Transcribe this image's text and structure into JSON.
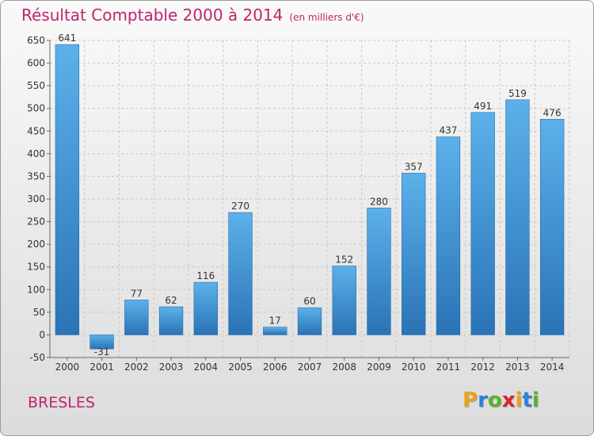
{
  "header": {
    "title": "Résultat Comptable 2000 à 2014",
    "subtitle": "(en milliers d'€)"
  },
  "footer": {
    "commune": "BRESLES",
    "logo": {
      "letters": [
        "P",
        "r",
        "o",
        "x",
        "i",
        "t",
        "i"
      ],
      "colors": [
        "#e8a31c",
        "#2f7fd8",
        "#58b030",
        "#d9252c",
        "#e8a31c",
        "#2f7fd8",
        "#58b030"
      ]
    }
  },
  "chart_data": {
    "type": "bar",
    "title": "Résultat Comptable 2000 à 2014",
    "subtitle": "(en milliers d'€)",
    "categories": [
      "2000",
      "2001",
      "2002",
      "2003",
      "2004",
      "2005",
      "2006",
      "2007",
      "2008",
      "2009",
      "2010",
      "2011",
      "2012",
      "2013",
      "2014"
    ],
    "values": [
      641,
      -31,
      77,
      62,
      116,
      270,
      17,
      60,
      152,
      280,
      357,
      437,
      491,
      519,
      476
    ],
    "ylim": [
      -50,
      650
    ],
    "yticks": [
      -50,
      0,
      50,
      100,
      150,
      200,
      250,
      300,
      350,
      400,
      450,
      500,
      550,
      600,
      650
    ],
    "grid": true,
    "bar_color": "#3a8fd6",
    "bar_color_light": "#5cb1ea",
    "bar_color_dark": "#2a73b6"
  }
}
